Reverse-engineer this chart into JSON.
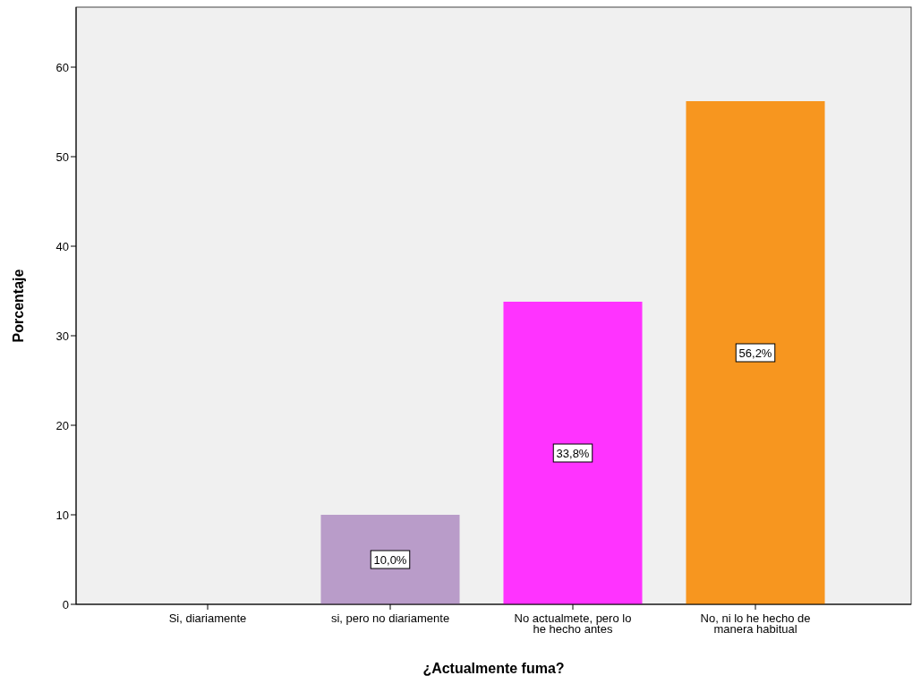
{
  "chart_data": {
    "type": "bar",
    "xlabel": "¿Actualmente fuma?",
    "ylabel": "Porcentaje",
    "categories": [
      "Si, diariamente",
      "si, pero no diariamente",
      "No actualmete, pero lo he hecho antes",
      "No, ni lo he hecho de manera habitual"
    ],
    "values": [
      0,
      10.0,
      33.8,
      56.2
    ],
    "colors": [
      "#e8413c",
      "#b99cc9",
      "#ff33ff",
      "#f7961f"
    ],
    "value_labels": [
      null,
      "10,0%",
      "33,8%",
      "56,2%"
    ],
    "ylim": [
      0,
      66.7
    ],
    "yticks": [
      0,
      10,
      20,
      30,
      40,
      50,
      60
    ],
    "grid": false
  }
}
